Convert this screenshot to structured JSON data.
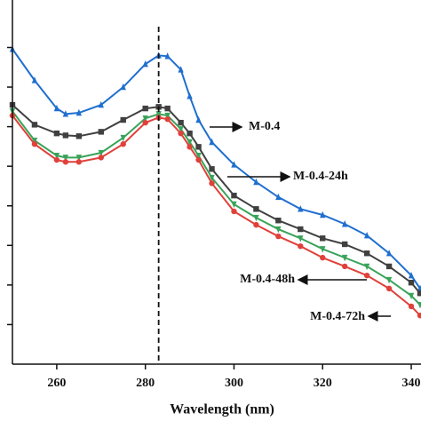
{
  "chart_data": {
    "type": "line",
    "x_label": "Wavelength (nm)",
    "x": [
      250,
      255,
      260,
      262,
      265,
      270,
      275,
      280,
      283,
      285,
      288,
      290,
      292,
      295,
      300,
      305,
      310,
      315,
      320,
      325,
      330,
      335,
      340,
      342
    ],
    "series": [
      {
        "name": "M-0.4",
        "color": "#1f6fd0",
        "marker": "triangle-up",
        "values": [
          7.96,
          7.17,
          6.46,
          6.32,
          6.35,
          6.55,
          7.0,
          7.58,
          7.8,
          7.78,
          7.44,
          6.77,
          6.17,
          5.61,
          5.04,
          4.6,
          4.22,
          3.92,
          3.77,
          3.54,
          3.25,
          2.8,
          2.24,
          1.91
        ]
      },
      {
        "name": "M-0.4-24h",
        "color": "#404040",
        "marker": "square",
        "values": [
          6.55,
          6.05,
          5.83,
          5.78,
          5.76,
          5.87,
          6.17,
          6.46,
          6.5,
          6.46,
          6.1,
          5.83,
          5.49,
          4.93,
          4.26,
          3.92,
          3.63,
          3.41,
          3.18,
          3.03,
          2.8,
          2.47,
          2.06,
          1.79
        ]
      },
      {
        "name": "M-0.4-48h",
        "color": "#3aa35a",
        "marker": "triangle-down",
        "values": [
          6.39,
          5.65,
          5.27,
          5.22,
          5.22,
          5.34,
          5.72,
          6.21,
          6.32,
          6.28,
          5.94,
          5.61,
          5.27,
          4.71,
          4.04,
          3.7,
          3.41,
          3.18,
          2.91,
          2.69,
          2.47,
          2.13,
          1.73,
          1.5
        ]
      },
      {
        "name": "M-0.4-72h",
        "color": "#e0413a",
        "marker": "circle",
        "values": [
          6.28,
          5.56,
          5.16,
          5.11,
          5.11,
          5.22,
          5.56,
          6.1,
          6.23,
          6.19,
          5.83,
          5.49,
          5.16,
          4.57,
          3.86,
          3.52,
          3.23,
          2.98,
          2.69,
          2.47,
          2.24,
          1.91,
          1.46,
          1.23
        ]
      }
    ],
    "vline": 283,
    "xlim": [
      250,
      342.2
    ],
    "xticks": [
      260,
      280,
      300,
      320,
      340
    ],
    "ylim": [
      0,
      9.2
    ],
    "yticks": [
      1,
      2,
      3,
      4,
      5,
      6,
      7,
      8
    ]
  }
}
